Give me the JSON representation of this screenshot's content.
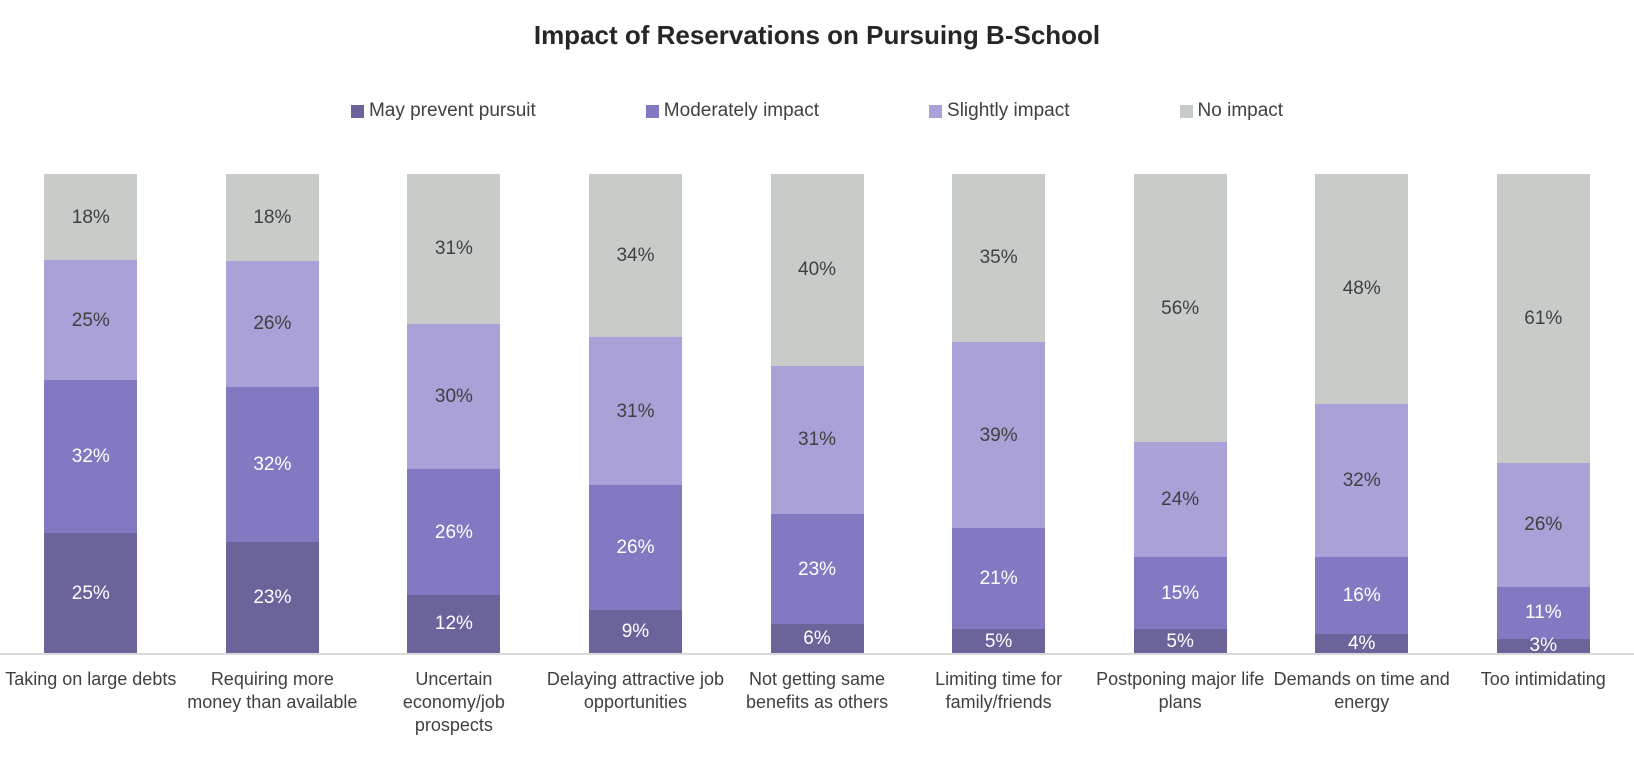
{
  "chart_data": {
    "type": "bar",
    "variant": "stacked-100-percent-column",
    "title": "Impact of Reservations on Pursuing B-School",
    "value_suffix": "%",
    "grid": false,
    "legend_position": "top-center",
    "axis_line_color": "#d9d9d9",
    "background_color": "#ffffff",
    "title_color": "#262626",
    "text_color": "#404040",
    "categories": [
      "Taking on large debts",
      "Requiring more money than available",
      "Uncertain economy/job prospects",
      "Delaying attractive job opportunities",
      "Not getting same benefits as others",
      "Limiting time for family/friends",
      "Postponing major life plans",
      "Demands on time and energy",
      "Too intimidating"
    ],
    "series": [
      {
        "name": "May prevent pursuit",
        "color": "#6b649b",
        "label_color": "#ffffff",
        "values": [
          25,
          23,
          12,
          9,
          6,
          5,
          5,
          4,
          3
        ]
      },
      {
        "name": "Moderately impact",
        "color": "#817ac2",
        "label_color": "#ffffff",
        "values": [
          32,
          32,
          26,
          26,
          23,
          21,
          15,
          16,
          11
        ]
      },
      {
        "name": "Slightly impact",
        "color": "#a9a1d7",
        "label_color": "#404040",
        "values": [
          25,
          26,
          30,
          31,
          31,
          39,
          24,
          32,
          26
        ]
      },
      {
        "name": "No impact",
        "color": "#c7ccc9",
        "label_color": "#404040",
        "values": [
          18,
          18,
          31,
          34,
          40,
          35,
          56,
          48,
          61
        ]
      }
    ]
  }
}
